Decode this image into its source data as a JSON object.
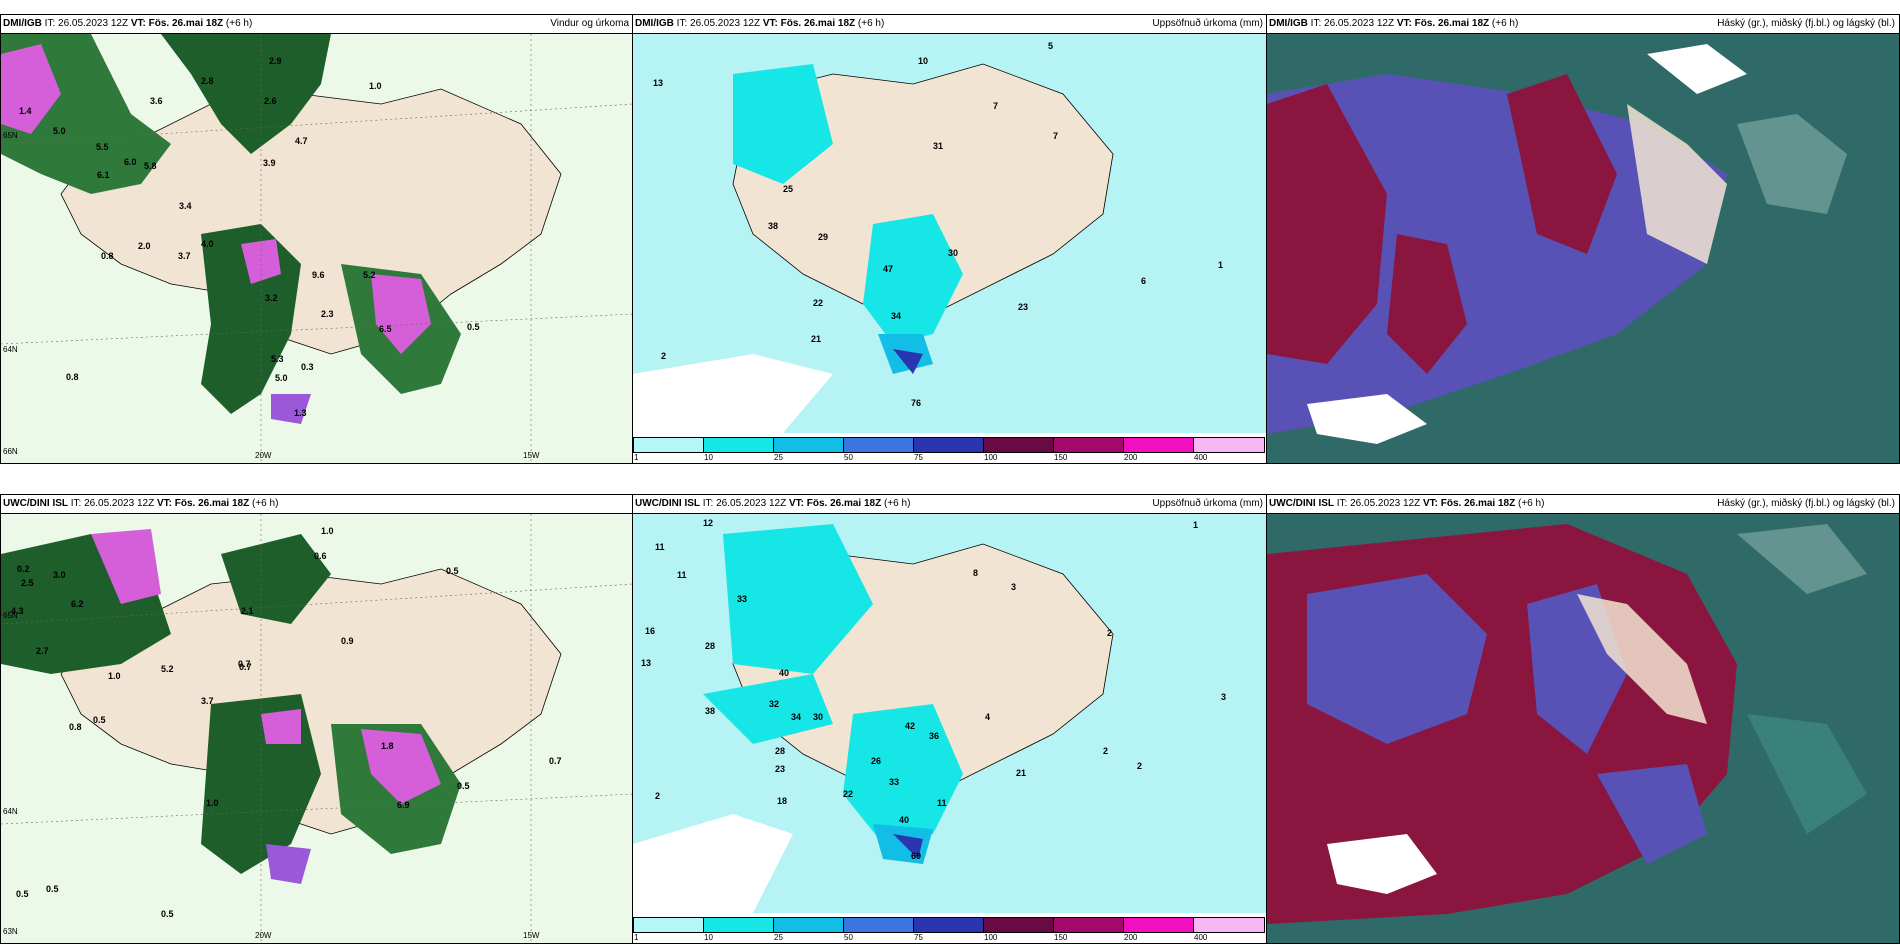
{
  "rows": [
    {
      "model": "DMI/IGB",
      "it_prefix": "IT: 26.05.2023 12Z",
      "vt_label": "VT: Fös. 26.mai 18Z",
      "lead": "(+6 h)",
      "wind_title": "Vindur og úrkoma",
      "precip_title": "Uppsöfnuð úrkoma (mm)",
      "cloud_title": "Háský (gr.), miðský (fj.bl.) og lágský (bl.)",
      "wind_values": [
        "1.4",
        "2.8",
        "2.9",
        "5.0",
        "5.5",
        "6.1",
        "6.0",
        "5.8",
        "3.6",
        "4.7",
        "3.9",
        "3.4",
        "2.6",
        "1.0",
        "0.8",
        "3.7",
        "4.0",
        "2.0",
        "3.2",
        "5.3",
        "0.8",
        "0.5",
        "0.3",
        "5.0",
        "1.3",
        "9.6",
        "5.2",
        "2.3",
        "6.5"
      ],
      "precip_values": [
        "13",
        "10",
        "5",
        "7",
        "7",
        "31",
        "25",
        "38",
        "29",
        "47",
        "30",
        "22",
        "34",
        "21",
        "23",
        "6",
        "1",
        "2",
        "76"
      ],
      "axis_labels": [
        "20W",
        "15W",
        "65N",
        "64N",
        "66N"
      ]
    },
    {
      "model": "UWC/DINI ISL",
      "it_prefix": "IT: 26.05.2023 12Z",
      "vt_label": "VT: Fös. 26.mai 18Z",
      "lead": "(+6 h)",
      "wind_title": "",
      "precip_title": "Uppsöfnuð úrkoma (mm)",
      "cloud_title": "Háský (gr.), miðský (fj.bl.) og lágský (bl.)",
      "wind_values": [
        "0.2",
        "2.5",
        "3.0",
        "4.3",
        "6.2",
        "2.7",
        "1.0",
        "0.8",
        "0.5",
        "0.6",
        "1.0",
        "0.9",
        "0.7",
        "0.5",
        "3.7",
        "5.2",
        "2.1",
        "0.7",
        "1.8",
        "6.9",
        "0.5",
        "1.0",
        "0.7",
        "0.5",
        "0.5",
        "0.5"
      ],
      "precip_values": [
        "12",
        "11",
        "16",
        "11",
        "13",
        "28",
        "33",
        "40",
        "38",
        "32",
        "34",
        "30",
        "36",
        "42",
        "28",
        "23",
        "18",
        "22",
        "26",
        "33",
        "40",
        "69",
        "11",
        "2",
        "3",
        "1",
        "2",
        "21",
        "2",
        "3",
        "2",
        "8",
        "4"
      ],
      "axis_labels": [
        "20W",
        "15W",
        "64N",
        "65N",
        "63N"
      ]
    }
  ],
  "colorbar": {
    "ticks": [
      "1",
      "10",
      "25",
      "50",
      "75",
      "100",
      "150",
      "200",
      "400"
    ],
    "colors": [
      "#b3f7f7",
      "#17e6e6",
      "#12bde6",
      "#3a76e0",
      "#2a35b0",
      "#6a0a45",
      "#a3086a",
      "#f010c0",
      "#f7b7f5"
    ]
  },
  "colors": {
    "land": "#f2e4d2",
    "sea_precip": "#b5f3f5",
    "cloud_red": "#8a1640",
    "cloud_blue": "#5852b6",
    "cloud_teal": "#2f6a68"
  }
}
